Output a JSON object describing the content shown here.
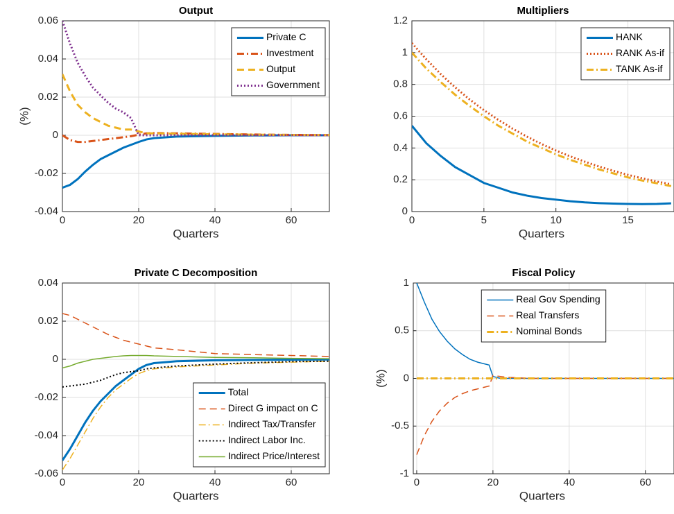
{
  "chart_data": [
    {
      "type": "line",
      "title": "Output",
      "xlabel": "Quarters",
      "ylabel": "(%)",
      "legend": "northeast",
      "grid": true,
      "x": [
        0,
        2,
        4,
        6,
        8,
        10,
        12,
        14,
        16,
        18,
        20,
        22,
        24,
        30,
        40,
        50,
        60,
        70
      ],
      "xlim": [
        0,
        70
      ],
      "xticks": [
        0,
        20,
        40,
        60
      ],
      "ylim": [
        -0.04,
        0.06
      ],
      "yticks": [
        -0.04,
        -0.02,
        0,
        0.02,
        0.04,
        0.06
      ],
      "series": [
        {
          "name": "Private C",
          "color": "#0072bd",
          "style": "solid",
          "width": 3,
          "values": [
            -0.0275,
            -0.026,
            -0.023,
            -0.019,
            -0.0155,
            -0.0125,
            -0.0105,
            -0.0085,
            -0.0065,
            -0.005,
            -0.0035,
            -0.0022,
            -0.0015,
            -0.0007,
            -0.0003,
            -0.0001,
            0,
            0
          ]
        },
        {
          "name": "Investment",
          "color": "#d95319",
          "style": "dashdot",
          "width": 3,
          "values": [
            0,
            -0.0025,
            -0.0035,
            -0.0035,
            -0.003,
            -0.0025,
            -0.002,
            -0.0015,
            -0.001,
            -0.0005,
            0.0003,
            0.001,
            0.0012,
            0.001,
            0.0007,
            0.0004,
            0.0002,
            0.0001
          ]
        },
        {
          "name": "Output",
          "color": "#edb120",
          "style": "dashed",
          "width": 3,
          "values": [
            0.032,
            0.023,
            0.016,
            0.012,
            0.009,
            0.007,
            0.005,
            0.004,
            0.003,
            0.003,
            0.002,
            0.001,
            0.001,
            0.0008,
            0.0005,
            0.0003,
            0.0002,
            0.0001
          ]
        },
        {
          "name": "Government",
          "color": "#7e2f8e",
          "style": "dotted",
          "width": 3,
          "values": [
            0.06,
            0.048,
            0.038,
            0.031,
            0.025,
            0.021,
            0.017,
            0.014,
            0.012,
            0.009,
            0,
            0,
            0,
            0,
            0,
            0,
            0,
            0
          ]
        }
      ]
    },
    {
      "type": "line",
      "title": "Multipliers",
      "xlabel": "Quarters",
      "legend": "northeast",
      "grid": true,
      "x": [
        0,
        1,
        2,
        3,
        4,
        5,
        6,
        7,
        8,
        9,
        10,
        11,
        12,
        13,
        14,
        15,
        16,
        17,
        18
      ],
      "xlim": [
        0,
        18.2
      ],
      "xticks": [
        0,
        5,
        10,
        15
      ],
      "ylim": [
        0,
        1.2
      ],
      "yticks": [
        0,
        0.2,
        0.4,
        0.6,
        0.8,
        1,
        1.2
      ],
      "series": [
        {
          "name": "HANK",
          "color": "#0072bd",
          "style": "solid",
          "width": 3,
          "values": [
            0.54,
            0.43,
            0.35,
            0.28,
            0.23,
            0.18,
            0.15,
            0.12,
            0.1,
            0.085,
            0.075,
            0.065,
            0.058,
            0.053,
            0.05,
            0.048,
            0.047,
            0.048,
            0.052
          ]
        },
        {
          "name": "RANK As-if",
          "color": "#d95319",
          "style": "dotted",
          "width": 3,
          "values": [
            1.06,
            0.958,
            0.865,
            0.782,
            0.706,
            0.638,
            0.577,
            0.521,
            0.471,
            0.425,
            0.384,
            0.347,
            0.314,
            0.283,
            0.256,
            0.231,
            0.209,
            0.189,
            0.171
          ]
        },
        {
          "name": "TANK As-if",
          "color": "#edb120",
          "style": "dashdot",
          "width": 3,
          "values": [
            1.0,
            0.9,
            0.815,
            0.735,
            0.665,
            0.6,
            0.54,
            0.49,
            0.44,
            0.4,
            0.36,
            0.325,
            0.295,
            0.265,
            0.24,
            0.215,
            0.195,
            0.178,
            0.16
          ]
        }
      ]
    },
    {
      "type": "line",
      "title": "Private C Decomposition",
      "xlabel": "Quarters",
      "legend": "southeast",
      "grid": true,
      "x": [
        0,
        2,
        4,
        6,
        8,
        10,
        12,
        14,
        16,
        18,
        20,
        22,
        24,
        30,
        40,
        50,
        60,
        70
      ],
      "xlim": [
        0,
        70
      ],
      "xticks": [
        0,
        20,
        40,
        60
      ],
      "ylim": [
        -0.06,
        0.04
      ],
      "yticks": [
        -0.06,
        -0.04,
        -0.02,
        0,
        0.02,
        0.04
      ],
      "series": [
        {
          "name": "Total",
          "color": "#0072bd",
          "style": "solid",
          "width": 3,
          "values": [
            -0.053,
            -0.047,
            -0.04,
            -0.033,
            -0.027,
            -0.022,
            -0.018,
            -0.014,
            -0.011,
            -0.008,
            -0.005,
            -0.003,
            -0.002,
            -0.001,
            -0.0005,
            -0.0003,
            -0.0002,
            -0.0001
          ]
        },
        {
          "name": "Direct G impact on C",
          "color": "#d95319",
          "style": "dashed",
          "width": 1.5,
          "values": [
            0.024,
            0.023,
            0.021,
            0.019,
            0.017,
            0.015,
            0.013,
            0.0115,
            0.01,
            0.009,
            0.008,
            0.007,
            0.006,
            0.005,
            0.003,
            0.0025,
            0.002,
            0.0015
          ]
        },
        {
          "name": "Indirect Tax/Transfer",
          "color": "#edb120",
          "style": "dashdot",
          "width": 1.5,
          "values": [
            -0.058,
            -0.052,
            -0.045,
            -0.038,
            -0.031,
            -0.025,
            -0.02,
            -0.016,
            -0.013,
            -0.01,
            -0.0075,
            -0.006,
            -0.005,
            -0.004,
            -0.003,
            -0.002,
            -0.0015,
            -0.001
          ]
        },
        {
          "name": "Indirect Labor Inc.",
          "color": "#000000",
          "style": "dotted",
          "width": 2,
          "values": [
            -0.0145,
            -0.014,
            -0.0135,
            -0.013,
            -0.012,
            -0.011,
            -0.0095,
            -0.008,
            -0.007,
            -0.0065,
            -0.006,
            -0.005,
            -0.0045,
            -0.0035,
            -0.0025,
            -0.0018,
            -0.0012,
            -0.001
          ]
        },
        {
          "name": "Indirect Price/Interest",
          "color": "#77ac30",
          "style": "solid",
          "width": 1.5,
          "values": [
            -0.0045,
            -0.0035,
            -0.002,
            -0.001,
            0,
            0.0005,
            0.001,
            0.0015,
            0.0018,
            0.002,
            0.002,
            0.002,
            0.0018,
            0.0015,
            0.001,
            0.0008,
            0.0005,
            0.0003
          ]
        }
      ]
    },
    {
      "type": "line",
      "title": "Fiscal Policy",
      "xlabel": "Quarters",
      "ylabel": "(%)",
      "legend": "north",
      "grid": true,
      "x": [
        0,
        2,
        4,
        6,
        8,
        10,
        12,
        14,
        16,
        18,
        19,
        20,
        22,
        24,
        30,
        40,
        50,
        60,
        70
      ],
      "xlim": [
        -0.9,
        67.5
      ],
      "xticks": [
        0,
        20,
        40,
        60
      ],
      "ylim": [
        -1,
        1
      ],
      "yticks": [
        -1,
        -0.5,
        0,
        0.5,
        1
      ],
      "series": [
        {
          "name": "Real Gov Spending",
          "color": "#0072bd",
          "style": "solid",
          "width": 1.5,
          "values": [
            1.0,
            0.8,
            0.62,
            0.49,
            0.39,
            0.31,
            0.25,
            0.2,
            0.17,
            0.15,
            0.14,
            0.02,
            0,
            0,
            0,
            0,
            0,
            0,
            0
          ]
        },
        {
          "name": "Real Transfers",
          "color": "#d95319",
          "style": "dashed",
          "width": 1.5,
          "values": [
            -0.8,
            -0.6,
            -0.45,
            -0.34,
            -0.26,
            -0.2,
            -0.16,
            -0.13,
            -0.11,
            -0.09,
            -0.08,
            0.03,
            0.02,
            0.01,
            0,
            0,
            0,
            0,
            0
          ]
        },
        {
          "name": "Nominal Bonds",
          "color": "#edb120",
          "style": "dashdot",
          "width": 3,
          "values": [
            0,
            0,
            0,
            0,
            0,
            0,
            0,
            0,
            0,
            0,
            0,
            0,
            0,
            0,
            0,
            0,
            0,
            0,
            0
          ]
        }
      ]
    }
  ]
}
